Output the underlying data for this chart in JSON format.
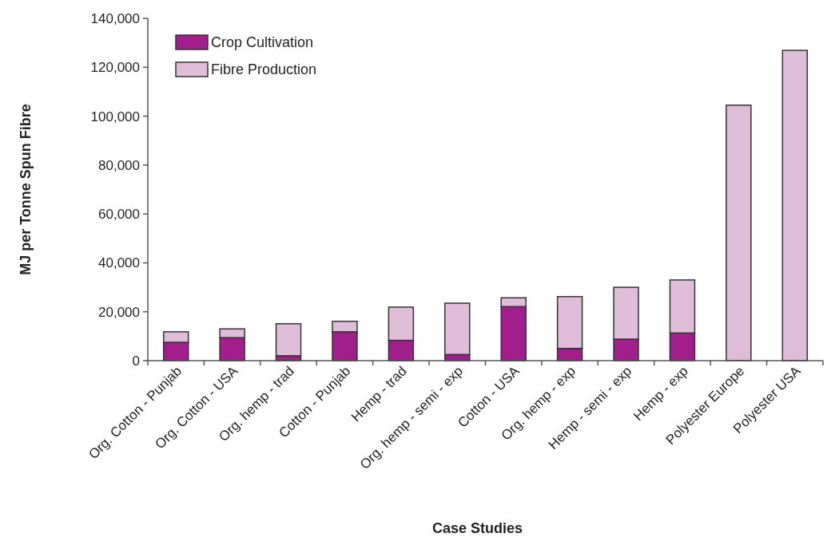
{
  "chart_data": {
    "type": "bar",
    "stacked": true,
    "xlabel": "Case Studies",
    "ylabel": "MJ per Tonne Spun Fibre",
    "categories": [
      "Org. Cotton - Punjab",
      "Org. Cotton - USA",
      "Org. hemp - trad",
      "Cotton - Punjab",
      "Hemp - trad",
      "Org. hemp - semi - exp",
      "Cotton - USA",
      "Org. hemp - exp",
      "Hemp - semi - exp",
      "Hemp - exp",
      "Polyester Europe",
      "Polyester USA"
    ],
    "series": [
      {
        "name": "Crop Cultivation",
        "color": "#a21e8c",
        "values": [
          7500,
          9400,
          2000,
          11800,
          8300,
          2500,
          22100,
          5000,
          8800,
          11300,
          0,
          0
        ]
      },
      {
        "name": "Fibre Production",
        "color": "#dfbdd9",
        "values": [
          4300,
          3600,
          13100,
          4300,
          13600,
          21000,
          3600,
          21200,
          21200,
          21700,
          104500,
          126900
        ]
      }
    ],
    "ylim": [
      0,
      140000
    ],
    "yticks": [
      {
        "value": 0,
        "label": "0"
      },
      {
        "value": 20000,
        "label": "20,000"
      },
      {
        "value": 40000,
        "label": "40,000"
      },
      {
        "value": 60000,
        "label": "60,000"
      },
      {
        "value": 80000,
        "label": "80,000"
      },
      {
        "value": 100000,
        "label": "100,000"
      },
      {
        "value": 120000,
        "label": "120,000"
      },
      {
        "value": 140000,
        "label": "140,000"
      }
    ],
    "grid": false,
    "legend": "top left"
  }
}
